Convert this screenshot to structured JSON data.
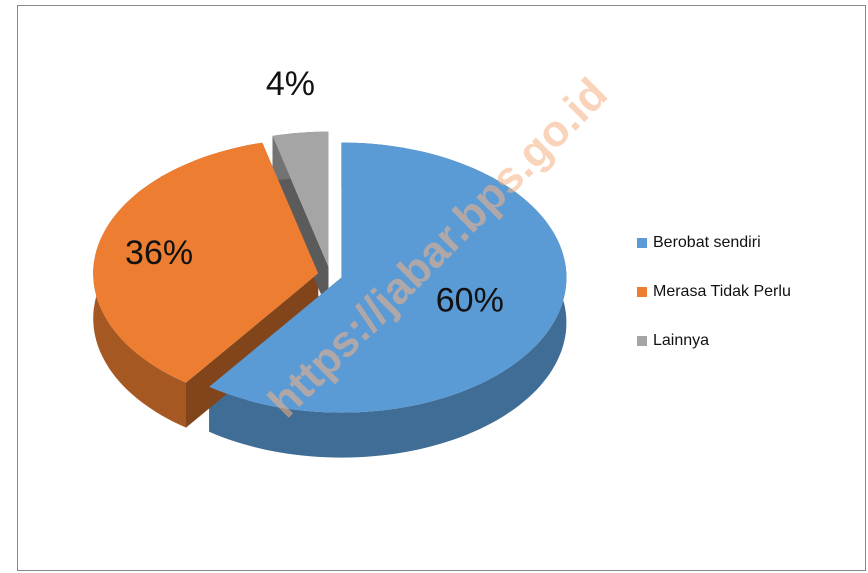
{
  "chart_data": {
    "type": "pie",
    "categories": [
      "Berobat sendiri",
      "Merasa Tidak Perlu",
      "Lainnya"
    ],
    "values": [
      60,
      36,
      4
    ],
    "value_labels": [
      "60%",
      "36%",
      "4%"
    ],
    "colors": [
      "#5b9bd5",
      "#ed7d31",
      "#a5a5a5"
    ],
    "legend": "right",
    "watermark": "https://jabar.bps.go.id"
  }
}
